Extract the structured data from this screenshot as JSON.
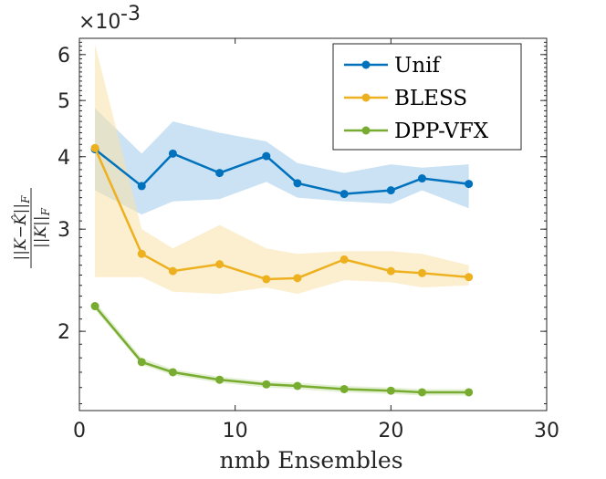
{
  "chart_data": {
    "type": "line",
    "title": "",
    "xlabel": "nmb Ensembles",
    "ylabel_numerator": "||K−K̂||",
    "ylabel_denominator": "||K||",
    "ylabel_subscript": "F",
    "yscale": "log",
    "xlim": [
      0,
      30
    ],
    "ylim": [
      0.00146,
      0.0064
    ],
    "exponent_label": "×10",
    "exponent_power": "-3",
    "x_ticks": [
      0,
      10,
      20,
      30
    ],
    "x_tick_labels": [
      "0",
      "10",
      "20",
      "30"
    ],
    "y_ticks": [
      0.002,
      0.003,
      0.004,
      0.005,
      0.006
    ],
    "y_tick_labels": [
      "2",
      "3",
      "4",
      "5",
      "6"
    ],
    "x": [
      1,
      4,
      6,
      9,
      12,
      14,
      17,
      20,
      22,
      25
    ],
    "series": [
      {
        "name": "Unif",
        "color": "#0072bd",
        "band_color": "#9fcae9",
        "values": [
          0.00412,
          0.00356,
          0.00405,
          0.00375,
          0.00401,
          0.0036,
          0.00345,
          0.0035,
          0.00367,
          0.00359
        ],
        "upper": [
          0.00485,
          0.00405,
          0.0046,
          0.0044,
          0.00425,
          0.0039,
          0.00375,
          0.00388,
          0.00383,
          0.00388
        ],
        "lower": [
          0.0035,
          0.00318,
          0.00335,
          0.00338,
          0.00362,
          0.0034,
          0.00335,
          0.00332,
          0.0035,
          0.00326
        ]
      },
      {
        "name": "BLESS",
        "color": "#edb120",
        "band_color": "#f9e1a7",
        "values": [
          0.00414,
          0.00272,
          0.00254,
          0.00261,
          0.00246,
          0.00247,
          0.00266,
          0.00254,
          0.00252,
          0.00248
        ],
        "upper": [
          0.00625,
          0.003,
          0.00278,
          0.00305,
          0.00278,
          0.00272,
          0.00275,
          0.00275,
          0.00272,
          0.0026
        ],
        "lower": [
          0.00248,
          0.00248,
          0.00234,
          0.00232,
          0.00238,
          0.00232,
          0.00245,
          0.00243,
          0.00238,
          0.0024
        ]
      },
      {
        "name": "DPP-VFX",
        "color": "#77ac30",
        "band_color": "#cde3b1",
        "values": [
          0.00221,
          0.00177,
          0.0017,
          0.00165,
          0.00162,
          0.00161,
          0.00159,
          0.00158,
          0.00157,
          0.00157
        ],
        "upper": [
          0.00225,
          0.0018,
          0.00172,
          0.00167,
          0.00164,
          0.00163,
          0.00161,
          0.0016,
          0.00159,
          0.00159
        ],
        "lower": [
          0.00218,
          0.00175,
          0.00168,
          0.00163,
          0.0016,
          0.00159,
          0.00157,
          0.00156,
          0.00155,
          0.00155
        ]
      }
    ],
    "legend_position": "top-right",
    "grid": false
  }
}
